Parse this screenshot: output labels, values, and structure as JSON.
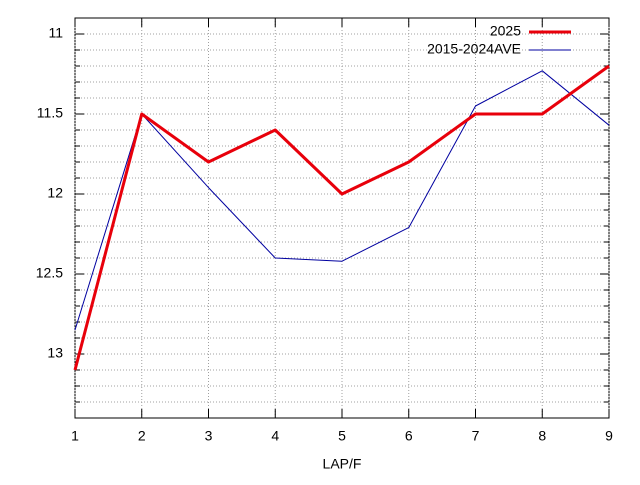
{
  "chart_data": {
    "type": "line",
    "x": [
      1,
      2,
      3,
      4,
      5,
      6,
      7,
      8,
      9
    ],
    "x_label": "LAP/F",
    "series": [
      {
        "name": "2025",
        "color": "#e8000b",
        "width": 3,
        "values": [
          13.1,
          11.5,
          11.8,
          11.6,
          12.0,
          11.8,
          11.5,
          11.5,
          11.2
        ]
      },
      {
        "name": "2015-2024AVE",
        "color": "#0000a0",
        "width": 1,
        "values": [
          12.85,
          11.5,
          11.96,
          12.4,
          12.42,
          12.21,
          11.45,
          11.23,
          11.57
        ]
      }
    ],
    "xlim": [
      1,
      9
    ],
    "xticks": [
      1,
      2,
      3,
      4,
      5,
      6,
      7,
      8,
      9
    ],
    "ylim": [
      10.9,
      13.4
    ],
    "yreverse": true,
    "yticks": [
      11,
      11.5,
      12,
      12.5,
      13
    ],
    "yminorticks": [
      11.1,
      11.2,
      11.3,
      11.4,
      11.6,
      11.7,
      11.8,
      11.9,
      12.1,
      12.2,
      12.3,
      12.4,
      12.6,
      12.7,
      12.8,
      12.9,
      13.1,
      13.2,
      13.3
    ],
    "grid": true,
    "legend": "top-right"
  }
}
